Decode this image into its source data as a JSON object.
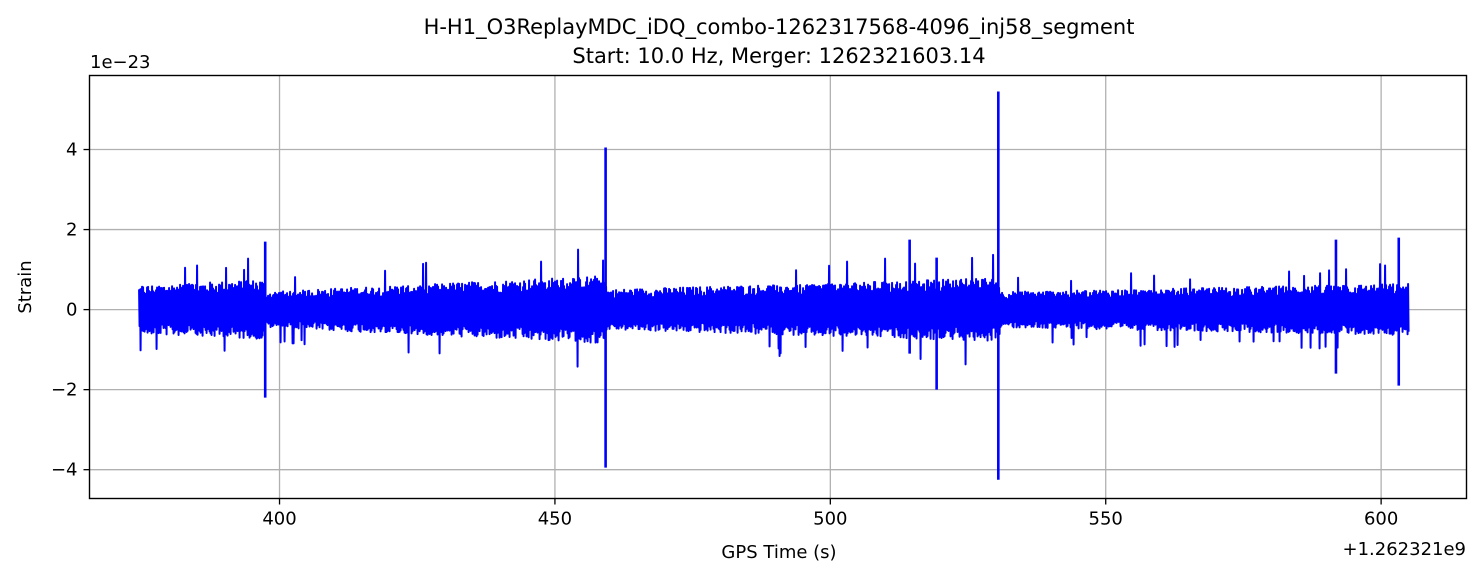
{
  "chart_data": {
    "type": "line",
    "title": "H-H1_O3ReplayMDC_iDQ_combo-1262317568-4096_inj58_segment",
    "subtitle": "Start: 10.0 Hz, Merger: 1262321603.14",
    "xlabel": "GPS Time (s)",
    "ylabel": "Strain",
    "x_offset_label": "+1.262321e9",
    "y_scale_label": "1e−23",
    "x_offset": 1262321000,
    "y_scale": 1e-23,
    "xlim": [
      1262321365.5,
      1262321615.5
    ],
    "ylim": [
      -4.72e-23,
      5.85e-23
    ],
    "xticks": [
      1262321400,
      1262321450,
      1262321500,
      1262321550,
      1262321600
    ],
    "xtick_labels": [
      "400",
      "450",
      "500",
      "550",
      "600"
    ],
    "yticks": [
      -4e-23,
      -2e-23,
      0,
      2e-23,
      4e-23
    ],
    "ytick_labels": [
      "−4",
      "−2",
      "0",
      "2",
      "4"
    ],
    "grid": true,
    "series_color": "#0000ff",
    "x_range": [
      1262321374.5,
      1262321605.0
    ],
    "noise_envelope": {
      "x": [
        1262321374.5,
        1262321397.0,
        1262321397.5,
        1262321459.0,
        1262321459.5,
        1262321530.5,
        1262321531.0,
        1262321605.0
      ],
      "amplitude": [
        6e-24,
        7.5e-24,
        4.5e-24,
        8.5e-24,
        5e-24,
        8e-24,
        4.5e-24,
        6.5e-24
      ]
    },
    "spikes": [
      {
        "x": 1262321459.2,
        "max": 4.05e-23,
        "min": -3.95e-23
      },
      {
        "x": 1262321530.5,
        "max": 5.45e-23,
        "min": -4.25e-23
      },
      {
        "x": 1262321397.4,
        "max": 1.7e-23,
        "min": -2.2e-23
      },
      {
        "x": 1262321519.3,
        "max": 1.3e-23,
        "min": -2e-23
      },
      {
        "x": 1262321514.4,
        "max": 1.75e-23,
        "min": -1.1e-23
      },
      {
        "x": 1262321591.8,
        "max": 1.75e-23,
        "min": -1.6e-23
      },
      {
        "x": 1262321603.2,
        "max": 1.8e-23,
        "min": -1.9e-23
      }
    ]
  }
}
